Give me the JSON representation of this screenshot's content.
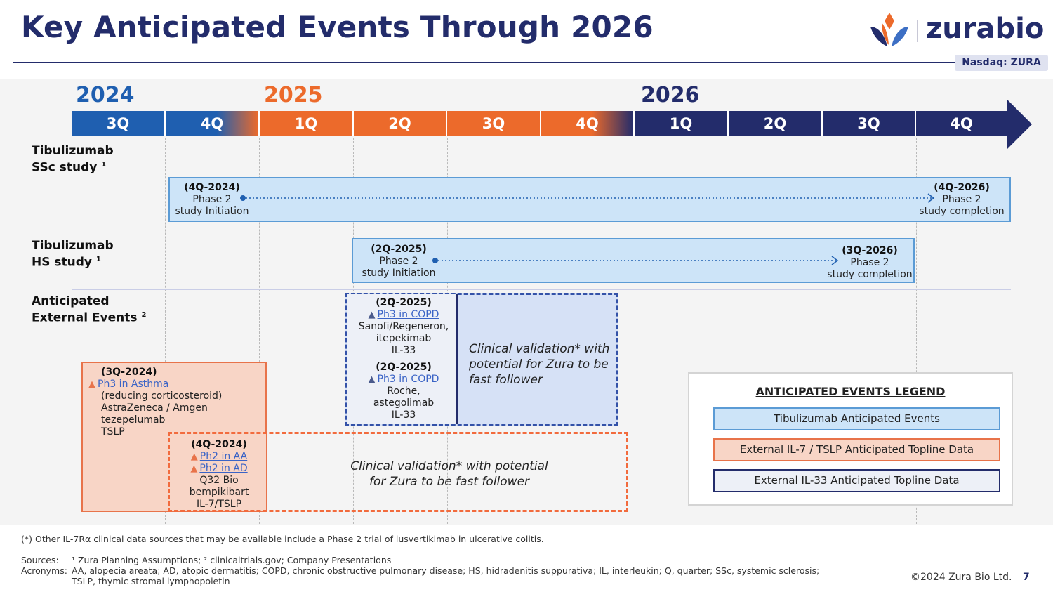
{
  "title": "Key Anticipated Events Through 2026",
  "logo": {
    "name": "zurabio",
    "ticker": "Nasdaq: ZURA"
  },
  "colors": {
    "navy": "#232c6b",
    "blue": "#1f5fb0",
    "orange": "#ec6a2b",
    "light_blue": "#cde4f8"
  },
  "years": [
    "2024",
    "2025",
    "2026"
  ],
  "quarters": [
    "3Q",
    "4Q",
    "1Q",
    "2Q",
    "3Q",
    "4Q",
    "1Q",
    "2Q",
    "3Q",
    "4Q"
  ],
  "rows": {
    "ssc": {
      "label1": "Tibulizumab",
      "label2": "SSc study",
      "sup": "1"
    },
    "hs": {
      "label1": "Tibulizumab",
      "label2": "HS study",
      "sup": "1"
    },
    "ext": {
      "label1": "Anticipated",
      "label2": "External Events",
      "sup": "2"
    }
  },
  "ssc_events": {
    "start": {
      "date": "(4Q-2024)",
      "line1": "Phase 2",
      "line2": "study Initiation"
    },
    "end": {
      "date": "(4Q-2026)",
      "line1": "Phase 2",
      "line2": "study completion"
    }
  },
  "hs_events": {
    "start": {
      "date": "(2Q-2025)",
      "line1": "Phase 2",
      "line2": "study Initiation"
    },
    "end": {
      "date": "(3Q-2026)",
      "line1": "Phase 2",
      "line2": "study completion"
    }
  },
  "il33_events": [
    {
      "date": "(2Q-2025)",
      "trial": "Ph3 in COPD",
      "sponsor": "Sanofi/Regeneron,",
      "drug": "itepekimab",
      "target": "IL-33"
    },
    {
      "date": "(2Q-2025)",
      "trial": "Ph3 in COPD",
      "sponsor": "Roche,",
      "drug": "astegolimab",
      "target": "IL-33"
    }
  ],
  "il33_note": "Clinical validation* with potential for Zura to be fast follower",
  "tslp_event": {
    "date": "(3Q-2024)",
    "trial": "Ph3 in Asthma",
    "note": "(reducing corticosteroid)",
    "sponsor": "AstraZeneca / Amgen",
    "drug": "tezepelumab",
    "target": "TSLP"
  },
  "il7_event": {
    "date": "(4Q-2024)",
    "trial1": "Ph2 in AA",
    "trial2": "Ph2 in AD",
    "sponsor": "Q32 Bio",
    "drug": "bempikibart",
    "target": "IL-7/TSLP"
  },
  "il7_note_line1": "Clinical validation* with potential",
  "il7_note_line2": "for Zura to be fast follower",
  "legend": {
    "title": "ANTICIPATED EVENTS LEGEND",
    "items": [
      "Tibulizumab Anticipated Events",
      "External IL-7 / TSLP Anticipated Topline Data",
      "External IL-33 Anticipated Topline Data"
    ]
  },
  "footer": {
    "note": "(*)  Other IL-7Rα clinical data sources that may be available include a Phase 2 trial of lusvertikimab in ulcerative colitis.",
    "sources_label": "Sources:",
    "sources_text": "¹ Zura Planning Assumptions;  ² clinicaltrials.gov; Company Presentations",
    "acronyms_label": "Acronyms:",
    "acronyms_line1": "AA, alopecia areata; AD, atopic dermatitis; COPD, chronic obstructive pulmonary disease; HS, hidradenitis suppurativa; IL, interleukin; Q, quarter; SSc, systemic sclerosis;",
    "acronyms_line2": "TSLP, thymic stromal lymphopoietin",
    "copyright": "©2024 Zura Bio Ltd.",
    "page": "7"
  }
}
